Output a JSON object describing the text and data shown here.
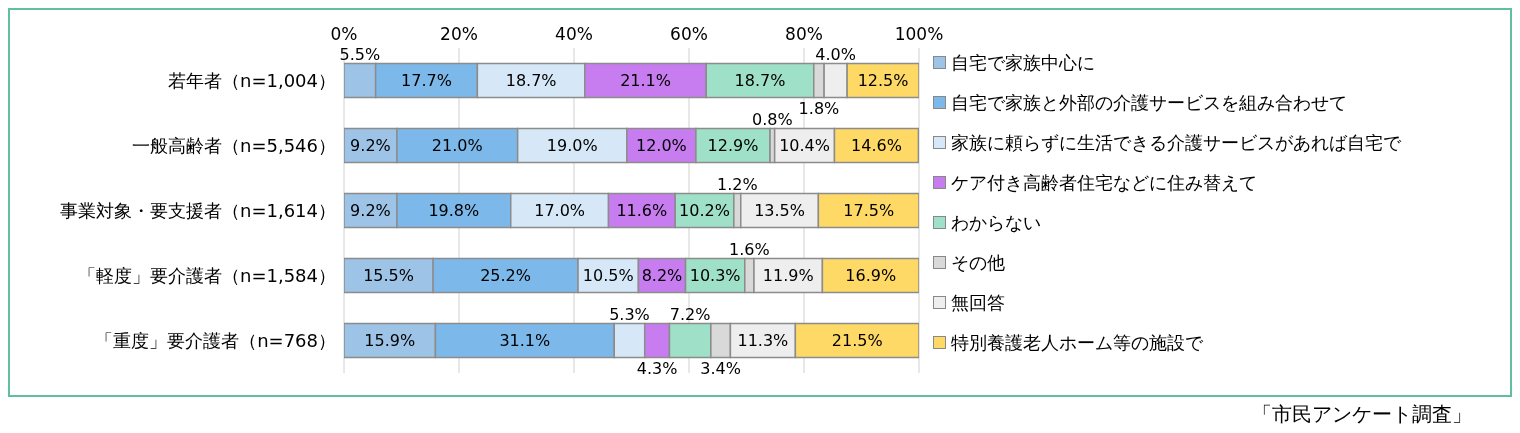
{
  "chart_data": {
    "type": "bar",
    "orientation": "horizontal",
    "stacked": true,
    "categories": [
      "若年者（n=1,004）",
      "一般高齢者（n=5,546）",
      "事業対象・要支援者（n=1,614）",
      "「軽度」要介護者（n=1,584）",
      "「重度」要介護者（n=768）"
    ],
    "series": [
      {
        "name": "自宅で家族中心に",
        "color": "#9dc3e6",
        "values": [
          5.5,
          9.2,
          9.2,
          15.5,
          15.9
        ],
        "value_labels": [
          "5.5%",
          "9.2%",
          "9.2%",
          "15.5%",
          "15.9%"
        ]
      },
      {
        "name": "自宅で家族と外部の介護サービスを組み合わせて",
        "color": "#7db8ea",
        "values": [
          17.7,
          21.0,
          19.8,
          25.2,
          31.1
        ],
        "value_labels": [
          "17.7%",
          "21.0%",
          "19.8%",
          "25.2%",
          "31.1%"
        ]
      },
      {
        "name": "家族に頼らずに生活できる介護サービスがあれば自宅で",
        "color": "#d6e8f7",
        "values": [
          18.7,
          19.0,
          17.0,
          10.5,
          5.3
        ],
        "value_labels": [
          "18.7%",
          "19.0%",
          "17.0%",
          "10.5%",
          "5.3%"
        ]
      },
      {
        "name": "ケア付き高齢者住宅などに住み替えて",
        "color": "#c77cf0",
        "values": [
          21.1,
          12.0,
          11.6,
          8.2,
          4.3
        ],
        "value_labels": [
          "21.1%",
          "12.0%",
          "11.6%",
          "8.2%",
          "4.3%"
        ]
      },
      {
        "name": "わからない",
        "color": "#9fe0c8",
        "values": [
          18.7,
          12.9,
          10.2,
          10.3,
          7.2
        ],
        "value_labels": [
          "18.7%",
          "12.9%",
          "10.2%",
          "10.3%",
          "7.2%"
        ]
      },
      {
        "name": "その他",
        "color": "#d9d9d9",
        "values": [
          1.8,
          0.8,
          1.2,
          1.6,
          3.4
        ],
        "value_labels": [
          "1.8%",
          "0.8%",
          "1.2%",
          "1.6%",
          "3.4%"
        ]
      },
      {
        "name": "無回答",
        "color": "#eeeeee",
        "values": [
          4.0,
          10.4,
          13.5,
          11.9,
          11.3
        ],
        "value_labels": [
          "4.0%",
          "10.4%",
          "13.5%",
          "11.9%",
          "11.3%"
        ]
      },
      {
        "name": "特別養護老人ホーム等の施設で",
        "color": "#ffd966",
        "values": [
          12.5,
          14.6,
          17.5,
          16.9,
          21.5
        ],
        "value_labels": [
          "12.5%",
          "14.6%",
          "17.5%",
          "16.9%",
          "21.5%"
        ]
      }
    ],
    "xlim": [
      0,
      100
    ],
    "xticks": [
      {
        "value": 0,
        "label": "0%"
      },
      {
        "value": 20,
        "label": "20%"
      },
      {
        "value": 40,
        "label": "40%"
      },
      {
        "value": 60,
        "label": "60%"
      },
      {
        "value": 80,
        "label": "80%"
      },
      {
        "value": 100,
        "label": "100%"
      }
    ],
    "grid": "x",
    "legend": "right",
    "annotations": [
      "「市民アンケート調査」"
    ]
  }
}
